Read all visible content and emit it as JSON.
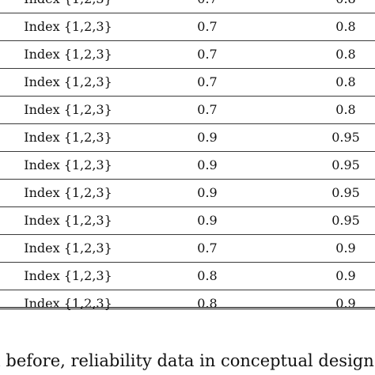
{
  "table": {
    "rows": [
      {
        "index": "Index {1,2,3}",
        "a": "0.7",
        "b": "0.8"
      },
      {
        "index": "Index {1,2,3}",
        "a": "0.7",
        "b": "0.8"
      },
      {
        "index": "Index {1,2,3}",
        "a": "0.7",
        "b": "0.8"
      },
      {
        "index": "Index {1,2,3}",
        "a": "0.7",
        "b": "0.8"
      },
      {
        "index": "Index {1,2,3}",
        "a": "0.7",
        "b": "0.8"
      },
      {
        "index": "Index {1,2,3}",
        "a": "0.9",
        "b": "0.95"
      },
      {
        "index": "Index {1,2,3}",
        "a": "0.9",
        "b": "0.95"
      },
      {
        "index": "Index {1,2,3}",
        "a": "0.9",
        "b": "0.95"
      },
      {
        "index": "Index {1,2,3}",
        "a": "0.9",
        "b": "0.95"
      },
      {
        "index": "Index {1,2,3}",
        "a": "0.7",
        "b": "0.9"
      },
      {
        "index": "Index {1,2,3}",
        "a": "0.8",
        "b": "0.9"
      },
      {
        "index": "Index {1,2,3}",
        "a": "0.8",
        "b": "0.9"
      }
    ]
  },
  "body_text": "l before, reliability data in conceptual design can b"
}
